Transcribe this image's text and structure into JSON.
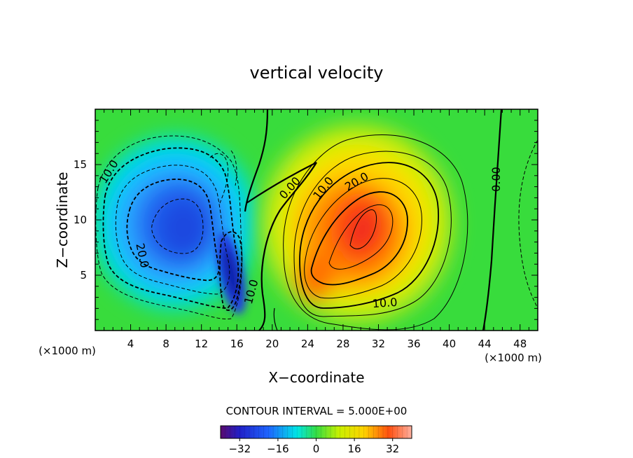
{
  "chart_data": {
    "type": "heatmap",
    "title": "vertical velocity",
    "xlabel": "X−coordinate",
    "ylabel": "Z−coordinate",
    "x_unit_left": "(×1000 m)",
    "x_unit_right": "(×1000 m)",
    "xlim": [
      0,
      50
    ],
    "ylim": [
      0,
      20
    ],
    "x_ticks": [
      4,
      8,
      12,
      16,
      20,
      24,
      28,
      32,
      36,
      40,
      44,
      48
    ],
    "y_ticks": [
      5,
      10,
      15
    ],
    "contour_interval_text": "CONTOUR INTERVAL = 5.000E+00",
    "contour_labels": [
      "10.0",
      "20.0",
      "0.00",
      "10.0",
      "20.0",
      "10.0",
      "10.0",
      "0.00"
    ],
    "colorbar": {
      "range": [
        -40,
        40
      ],
      "ticks": [
        -32,
        -16,
        0,
        16,
        32
      ]
    },
    "features": [
      {
        "sign": "negative",
        "x": 10,
        "z": 10,
        "peak": -28
      },
      {
        "sign": "negative",
        "x": 15.5,
        "z": 5,
        "peak": -38
      },
      {
        "sign": "positive",
        "x": 30,
        "z": 9,
        "peak": 35
      },
      {
        "sign": "positive",
        "x": 25,
        "z": 5,
        "peak": 24
      }
    ]
  }
}
